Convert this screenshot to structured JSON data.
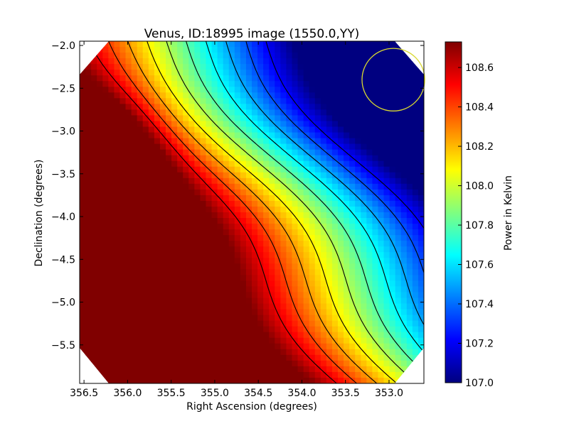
{
  "chart_data": {
    "type": "heatmap",
    "title": "Venus, ID:18995 image (1550.0,YY)",
    "xlabel": "Right Ascension (degrees)",
    "ylabel": "Declination (degrees)",
    "colorbar_label": "Power in Kelvin",
    "x_ticks": [
      "356.5",
      "356.0",
      "355.5",
      "355.0",
      "354.5",
      "354.0",
      "353.5",
      "353.0"
    ],
    "x_tick_values": [
      356.5,
      356.0,
      355.5,
      355.0,
      354.5,
      354.0,
      353.5,
      353.0
    ],
    "y_ticks": [
      "−2.0",
      "−2.5",
      "−3.0",
      "−3.5",
      "−4.0",
      "−4.5",
      "−5.0",
      "−5.5"
    ],
    "y_tick_values": [
      -2.0,
      -2.5,
      -3.0,
      -3.5,
      -4.0,
      -4.5,
      -5.0,
      -5.5
    ],
    "colorbar_ticks": [
      "107.0",
      "107.2",
      "107.4",
      "107.6",
      "107.8",
      "108.0",
      "108.2",
      "108.4",
      "108.6"
    ],
    "colorbar_tick_values": [
      107.0,
      107.2,
      107.4,
      107.6,
      107.8,
      108.0,
      108.2,
      108.4,
      108.6
    ],
    "xlim": [
      356.55,
      352.6
    ],
    "ylim": [
      -5.95,
      -1.95
    ],
    "color_range": [
      107.0,
      108.73
    ],
    "colormap": "jet",
    "beam_circle": {
      "ra": 352.95,
      "dec": -2.4,
      "radius_deg": 0.36,
      "color": "#d8d830"
    },
    "contour_levels": [
      107.2,
      107.35,
      107.5,
      107.65,
      107.8,
      107.95,
      108.1,
      108.25,
      108.4,
      108.55
    ]
  }
}
